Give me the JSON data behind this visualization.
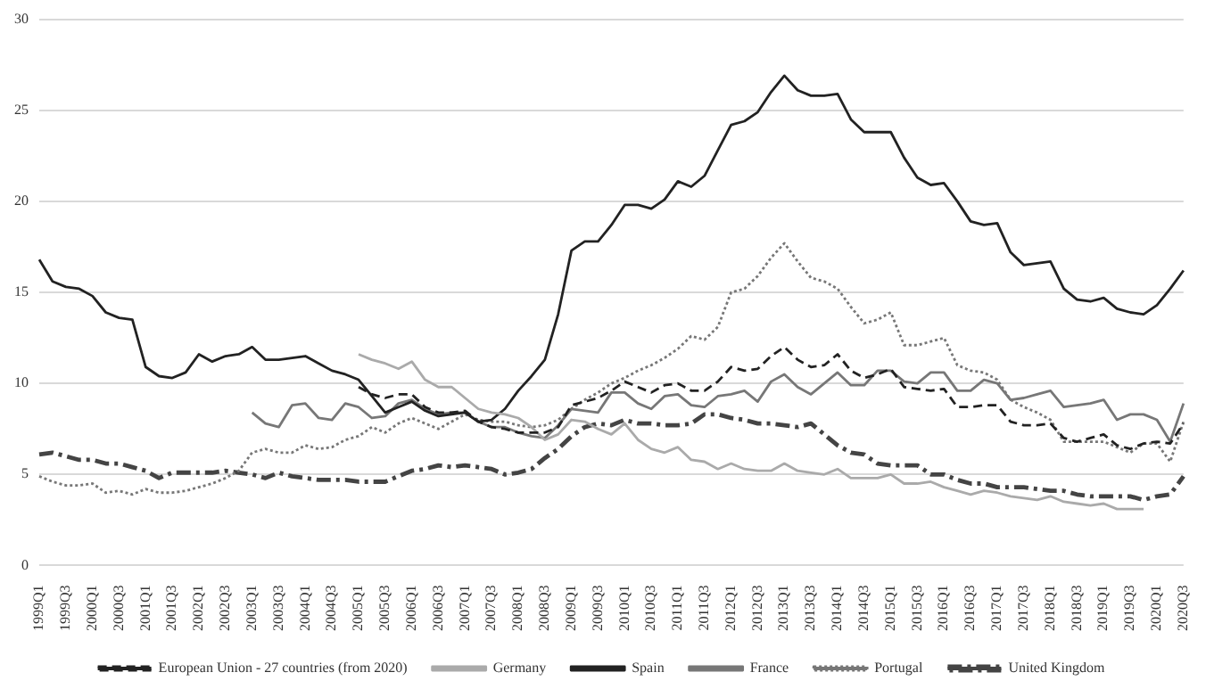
{
  "chart_data": {
    "type": "line",
    "categories": [
      "1999Q1",
      null,
      "1999Q3",
      null,
      "2000Q1",
      null,
      "2000Q3",
      null,
      "2001Q1",
      null,
      "2001Q3",
      null,
      "2002Q1",
      null,
      "2002Q3",
      null,
      "2003Q1",
      null,
      "2003Q3",
      null,
      "2004Q1",
      null,
      "2004Q3",
      null,
      "2005Q1",
      null,
      "2005Q3",
      null,
      "2006Q1",
      null,
      "2006Q3",
      null,
      "2007Q1",
      null,
      "2007Q3",
      null,
      "2008Q1",
      null,
      "2008Q3",
      null,
      "2009Q1",
      null,
      "2009Q3",
      null,
      "2010Q1",
      null,
      "2010Q3",
      null,
      "2011Q1",
      null,
      "2011Q3",
      null,
      "2012Q1",
      null,
      "2012Q3",
      null,
      "2013Q1",
      null,
      "2013Q3",
      null,
      "2014Q1",
      null,
      "2014Q3",
      null,
      "2015Q1",
      null,
      "2015Q3",
      null,
      "2016Q1",
      null,
      "2016Q3",
      null,
      "2017Q1",
      null,
      "2017Q3",
      null,
      "2018Q1",
      null,
      "2018Q3",
      null,
      "2019Q1",
      null,
      "2019Q3",
      null,
      "2020Q1",
      null,
      "2020Q3"
    ],
    "series": [
      {
        "name": "European Union - 27 countries (from 2020)",
        "color": "#222222",
        "line_style": "dashed",
        "values": [
          null,
          null,
          null,
          null,
          null,
          null,
          null,
          null,
          null,
          null,
          null,
          null,
          null,
          null,
          null,
          null,
          null,
          null,
          null,
          null,
          null,
          null,
          null,
          null,
          9.8,
          9.4,
          9.2,
          9.4,
          9.4,
          8.7,
          8.4,
          8.4,
          8.5,
          7.9,
          7.6,
          7.5,
          7.3,
          7.3,
          7.3,
          7.6,
          8.8,
          9.0,
          9.2,
          9.6,
          10.1,
          9.8,
          9.5,
          9.9,
          10.0,
          9.6,
          9.6,
          10.1,
          10.9,
          10.7,
          10.8,
          11.5,
          12.0,
          11.3,
          10.9,
          11.0,
          11.6,
          10.7,
          10.3,
          10.5,
          10.8,
          9.8,
          9.7,
          9.6,
          9.7,
          8.7,
          8.7,
          8.8,
          8.8,
          7.9,
          7.7,
          7.7,
          7.8,
          7.0,
          6.8,
          7.0,
          7.2,
          6.6,
          6.4,
          6.7,
          6.8,
          6.7,
          7.8
        ]
      },
      {
        "name": "Germany",
        "color": "#aaaaaa",
        "line_style": "solid",
        "values": [
          null,
          null,
          null,
          null,
          null,
          null,
          null,
          null,
          null,
          null,
          null,
          null,
          null,
          null,
          null,
          null,
          null,
          null,
          null,
          null,
          null,
          null,
          null,
          null,
          11.6,
          11.3,
          11.1,
          10.8,
          11.2,
          10.2,
          9.8,
          9.8,
          9.2,
          8.6,
          8.4,
          8.3,
          8.1,
          7.6,
          6.9,
          7.2,
          8.0,
          7.9,
          7.5,
          7.2,
          7.8,
          6.9,
          6.4,
          6.2,
          6.5,
          5.8,
          5.7,
          5.3,
          5.6,
          5.3,
          5.2,
          5.2,
          5.6,
          5.2,
          5.1,
          5.0,
          5.3,
          4.8,
          4.8,
          4.8,
          5.0,
          4.5,
          4.5,
          4.6,
          4.3,
          4.1,
          3.9,
          4.1,
          4.0,
          3.8,
          3.7,
          3.6,
          3.8,
          3.5,
          3.4,
          3.3,
          3.4,
          3.1,
          3.1,
          3.1,
          null,
          null,
          null
        ]
      },
      {
        "name": "Spain",
        "color": "#222222",
        "line_style": "solid",
        "values": [
          16.8,
          15.6,
          15.3,
          15.2,
          14.8,
          13.9,
          13.6,
          13.5,
          10.9,
          10.4,
          10.3,
          10.6,
          11.6,
          11.2,
          11.5,
          11.6,
          12.0,
          11.3,
          11.3,
          11.4,
          11.5,
          11.1,
          10.7,
          10.5,
          10.2,
          9.3,
          8.4,
          8.7,
          9.0,
          8.5,
          8.2,
          8.3,
          8.4,
          7.9,
          8.0,
          8.6,
          9.6,
          10.4,
          11.3,
          13.8,
          17.3,
          17.8,
          17.8,
          18.7,
          19.8,
          19.8,
          19.6,
          20.1,
          21.1,
          20.8,
          21.4,
          22.8,
          24.2,
          24.4,
          24.9,
          26.0,
          26.9,
          26.1,
          25.8,
          25.8,
          25.9,
          24.5,
          23.8,
          23.8,
          23.8,
          22.4,
          21.3,
          20.9,
          21.0,
          20.0,
          18.9,
          18.7,
          18.8,
          17.2,
          16.5,
          16.6,
          16.7,
          15.2,
          14.6,
          14.5,
          14.7,
          14.1,
          13.9,
          13.8,
          14.3,
          15.2,
          16.2
        ]
      },
      {
        "name": "France",
        "color": "#777777",
        "line_style": "solid",
        "values": [
          null,
          null,
          null,
          null,
          null,
          null,
          null,
          null,
          null,
          null,
          null,
          null,
          null,
          null,
          null,
          null,
          8.4,
          7.8,
          7.6,
          8.8,
          8.9,
          8.1,
          8.0,
          8.9,
          8.7,
          8.1,
          8.2,
          8.9,
          9.1,
          8.6,
          8.3,
          8.4,
          8.4,
          7.9,
          7.6,
          7.6,
          7.3,
          7.1,
          7.0,
          7.7,
          8.6,
          8.5,
          8.4,
          9.5,
          9.5,
          8.9,
          8.6,
          9.3,
          9.4,
          8.8,
          8.7,
          9.3,
          9.4,
          9.6,
          9.0,
          10.1,
          10.5,
          9.8,
          9.4,
          10.0,
          10.6,
          9.9,
          9.9,
          10.7,
          10.7,
          10.1,
          10.0,
          10.6,
          10.6,
          9.6,
          9.6,
          10.2,
          10.0,
          9.1,
          9.2,
          9.4,
          9.6,
          8.7,
          8.8,
          8.9,
          9.1,
          8.0,
          8.3,
          8.3,
          8.0,
          6.8,
          8.9
        ]
      },
      {
        "name": "Portugal",
        "color": "#777777",
        "line_style": "dotted",
        "values": [
          4.9,
          4.6,
          4.4,
          4.4,
          4.5,
          4.0,
          4.1,
          3.9,
          4.2,
          4.0,
          4.0,
          4.1,
          4.3,
          4.5,
          4.8,
          5.2,
          6.2,
          6.4,
          6.2,
          6.2,
          6.6,
          6.4,
          6.5,
          6.9,
          7.1,
          7.6,
          7.3,
          7.8,
          8.1,
          7.8,
          7.5,
          7.9,
          8.3,
          8.0,
          7.9,
          7.9,
          7.7,
          7.6,
          7.7,
          8.0,
          8.6,
          9.1,
          9.5,
          10.0,
          10.3,
          10.7,
          11.0,
          11.4,
          11.9,
          12.6,
          12.4,
          13.1,
          15.0,
          15.2,
          15.9,
          16.9,
          17.7,
          16.7,
          15.8,
          15.6,
          15.2,
          14.2,
          13.3,
          13.5,
          13.9,
          12.1,
          12.1,
          12.3,
          12.5,
          11.0,
          10.7,
          10.6,
          10.2,
          9.1,
          8.7,
          8.4,
          8.0,
          6.8,
          6.8,
          6.8,
          6.8,
          6.5,
          6.2,
          6.7,
          6.7,
          5.7,
          7.9
        ]
      },
      {
        "name": "United Kingdom",
        "color": "#444444",
        "line_style": "dashdot",
        "values": [
          6.1,
          6.2,
          6.0,
          5.8,
          5.8,
          5.6,
          5.6,
          5.4,
          5.2,
          4.8,
          5.1,
          5.1,
          5.1,
          5.1,
          5.2,
          5.1,
          5.0,
          4.8,
          5.1,
          4.9,
          4.8,
          4.7,
          4.7,
          4.7,
          4.6,
          4.6,
          4.6,
          4.9,
          5.2,
          5.3,
          5.5,
          5.4,
          5.5,
          5.4,
          5.3,
          5.0,
          5.1,
          5.3,
          5.9,
          6.4,
          7.1,
          7.6,
          7.8,
          7.7,
          8.0,
          7.8,
          7.8,
          7.7,
          7.7,
          7.8,
          8.3,
          8.3,
          8.1,
          8.0,
          7.8,
          7.8,
          7.7,
          7.6,
          7.8,
          7.2,
          6.6,
          6.2,
          6.1,
          5.6,
          5.5,
          5.5,
          5.5,
          5.0,
          5.0,
          4.7,
          4.5,
          4.5,
          4.3,
          4.3,
          4.3,
          4.2,
          4.1,
          4.1,
          3.9,
          3.8,
          3.8,
          3.8,
          3.8,
          3.6,
          3.8,
          3.9,
          4.9
        ]
      }
    ],
    "ylim": [
      0,
      30
    ],
    "yticks": [
      0,
      5,
      10,
      15,
      20,
      25,
      30
    ],
    "grid": "y",
    "legend": "bottom",
    "marker": "none"
  }
}
